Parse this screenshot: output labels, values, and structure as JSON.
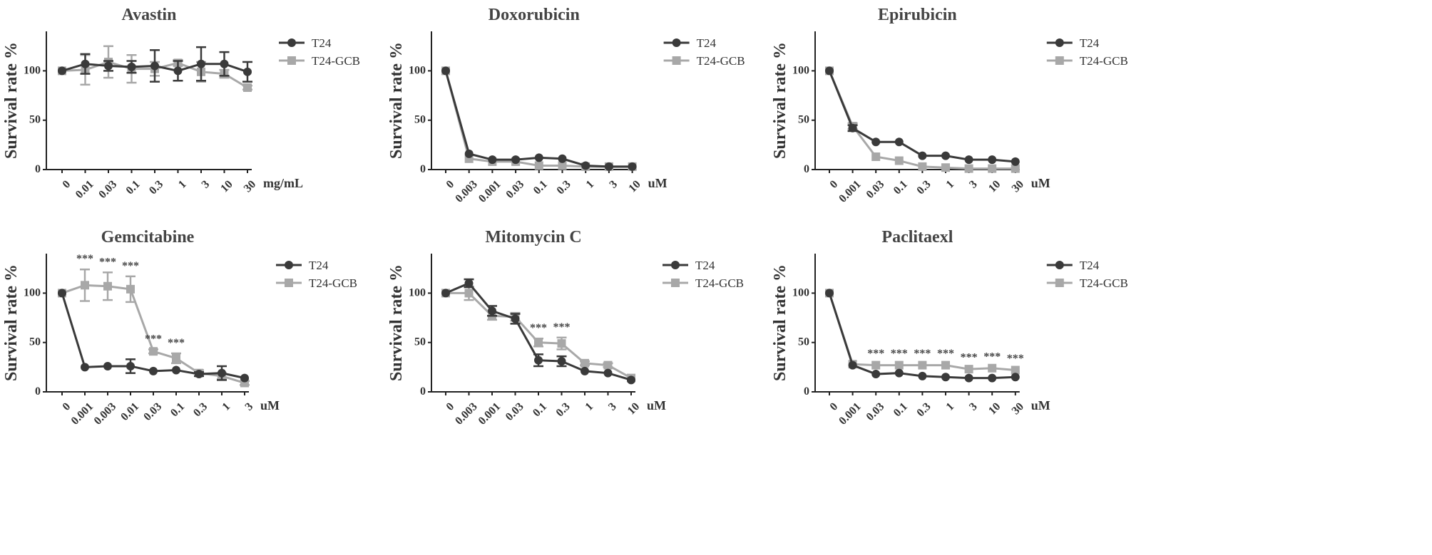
{
  "chart_data": [
    {
      "type": "line",
      "title": "Avastin",
      "ylabel": "Survival rate %",
      "xunit": "mg/mL",
      "categories": [
        "0",
        "0.01",
        "0.03",
        "0.1",
        "0.3",
        "1",
        "3",
        "10",
        "30"
      ],
      "ylim": [
        0,
        140
      ],
      "yticks": [
        0,
        50,
        100
      ],
      "series": [
        {
          "name": "T24",
          "color": "#3a3a3a",
          "marker": "circle",
          "values": [
            100,
            107,
            105,
            104,
            105,
            100,
            107,
            107,
            99
          ],
          "errors": [
            0,
            10,
            5,
            6,
            16,
            10,
            17,
            12,
            10
          ]
        },
        {
          "name": "T24-GCB",
          "color": "#a8a8a8",
          "marker": "square",
          "values": [
            100,
            101,
            109,
            102,
            102,
            108,
            99,
            97,
            83
          ],
          "errors": [
            0,
            15,
            16,
            14,
            7,
            3,
            10,
            4,
            2
          ]
        }
      ],
      "annotations": []
    },
    {
      "type": "line",
      "title": "Doxorubicin",
      "ylabel": "Survival rate %",
      "xunit": "uM",
      "categories": [
        "0",
        "0.003",
        "0.001",
        "0.03",
        "0.1",
        "0.3",
        "1",
        "3",
        "10"
      ],
      "ylim": [
        0,
        140
      ],
      "yticks": [
        0,
        50,
        100
      ],
      "series": [
        {
          "name": "T24",
          "color": "#3a3a3a",
          "marker": "circle",
          "values": [
            100,
            16,
            10,
            10,
            12,
            11,
            4,
            3,
            3
          ],
          "errors": [
            0,
            1,
            1,
            1,
            1,
            1,
            1,
            1,
            1
          ]
        },
        {
          "name": "T24-GCB",
          "color": "#a8a8a8",
          "marker": "square",
          "values": [
            100,
            11,
            8,
            8,
            4,
            4,
            3,
            3,
            3
          ],
          "errors": [
            0,
            1,
            1,
            1,
            1,
            1,
            1,
            1,
            1
          ]
        }
      ],
      "annotations": []
    },
    {
      "type": "line",
      "title": "Epirubicin",
      "ylabel": "Survival rate %",
      "xunit": "uM",
      "categories": [
        "0",
        "0.001",
        "0.03",
        "0.1",
        "0.3",
        "1",
        "3",
        "10",
        "30"
      ],
      "ylim": [
        0,
        140
      ],
      "yticks": [
        0,
        50,
        100
      ],
      "series": [
        {
          "name": "T24",
          "color": "#3a3a3a",
          "marker": "circle",
          "values": [
            100,
            42,
            28,
            28,
            14,
            14,
            10,
            10,
            8
          ],
          "errors": [
            0,
            3,
            1,
            1,
            1,
            1,
            1,
            1,
            1
          ]
        },
        {
          "name": "T24-GCB",
          "color": "#a8a8a8",
          "marker": "square",
          "values": [
            100,
            44,
            13,
            9,
            3,
            2,
            1,
            1,
            1
          ],
          "errors": [
            0,
            3,
            1,
            1,
            1,
            1,
            1,
            1,
            1
          ]
        }
      ],
      "annotations": []
    },
    {
      "type": "line",
      "title": "Gemcitabine",
      "ylabel": "Survival rate %",
      "xunit": "uM",
      "categories": [
        "0",
        "0.001",
        "0.003",
        "0.01",
        "0.03",
        "0.1",
        "0.3",
        "1",
        "3"
      ],
      "ylim": [
        0,
        140
      ],
      "yticks": [
        0,
        50,
        100
      ],
      "series": [
        {
          "name": "T24",
          "color": "#3a3a3a",
          "marker": "circle",
          "values": [
            100,
            25,
            26,
            26,
            21,
            22,
            18,
            19,
            14
          ],
          "errors": [
            0,
            1,
            1,
            7,
            1,
            1,
            2,
            7,
            1
          ]
        },
        {
          "name": "T24-GCB",
          "color": "#a8a8a8",
          "marker": "square",
          "values": [
            100,
            108,
            107,
            104,
            41,
            34,
            19,
            16,
            9
          ],
          "errors": [
            0,
            16,
            14,
            13,
            2,
            5,
            3,
            3,
            2
          ]
        }
      ],
      "annotations": [
        {
          "index": 1,
          "text": "***"
        },
        {
          "index": 2,
          "text": "***"
        },
        {
          "index": 3,
          "text": "***"
        },
        {
          "index": 4,
          "text": "***"
        },
        {
          "index": 5,
          "text": "***"
        }
      ]
    },
    {
      "type": "line",
      "title": "Mitomycin C",
      "ylabel": "Survival rate %",
      "xunit": "uM",
      "categories": [
        "0",
        "0.003",
        "0.001",
        "0.03",
        "0.1",
        "0.3",
        "1",
        "3",
        "10"
      ],
      "ylim": [
        0,
        140
      ],
      "yticks": [
        0,
        50,
        100
      ],
      "series": [
        {
          "name": "T24",
          "color": "#3a3a3a",
          "marker": "circle",
          "values": [
            100,
            110,
            82,
            74,
            32,
            31,
            21,
            19,
            12
          ],
          "errors": [
            0,
            4,
            5,
            5,
            6,
            5,
            1,
            1,
            1
          ]
        },
        {
          "name": "T24-GCB",
          "color": "#a8a8a8",
          "marker": "square",
          "values": [
            100,
            100,
            77,
            76,
            50,
            49,
            29,
            27,
            14
          ],
          "errors": [
            0,
            7,
            4,
            4,
            4,
            6,
            2,
            2,
            1
          ]
        }
      ],
      "annotations": [
        {
          "index": 4,
          "text": "***"
        },
        {
          "index": 5,
          "text": "***"
        }
      ]
    },
    {
      "type": "line",
      "title": "Paclitaexl",
      "ylabel": "Survival rate %",
      "xunit": "uM",
      "categories": [
        "0",
        "0.001",
        "0.03",
        "0.1",
        "0.3",
        "1",
        "3",
        "10",
        "30"
      ],
      "ylim": [
        0,
        140
      ],
      "yticks": [
        0,
        50,
        100
      ],
      "series": [
        {
          "name": "T24",
          "color": "#3a3a3a",
          "marker": "circle",
          "values": [
            100,
            27,
            18,
            19,
            16,
            15,
            14,
            14,
            15
          ],
          "errors": [
            0,
            1,
            1,
            1,
            1,
            1,
            1,
            1,
            1
          ]
        },
        {
          "name": "T24-GCB",
          "color": "#a8a8a8",
          "marker": "square",
          "values": [
            100,
            28,
            27,
            27,
            27,
            27,
            23,
            24,
            22
          ],
          "errors": [
            0,
            1,
            1,
            1,
            1,
            1,
            1,
            1,
            1
          ]
        }
      ],
      "annotations": [
        {
          "index": 2,
          "text": "***"
        },
        {
          "index": 3,
          "text": "***"
        },
        {
          "index": 4,
          "text": "***"
        },
        {
          "index": 5,
          "text": "***"
        },
        {
          "index": 6,
          "text": "***"
        },
        {
          "index": 7,
          "text": "***"
        },
        {
          "index": 8,
          "text": "***"
        }
      ]
    }
  ]
}
